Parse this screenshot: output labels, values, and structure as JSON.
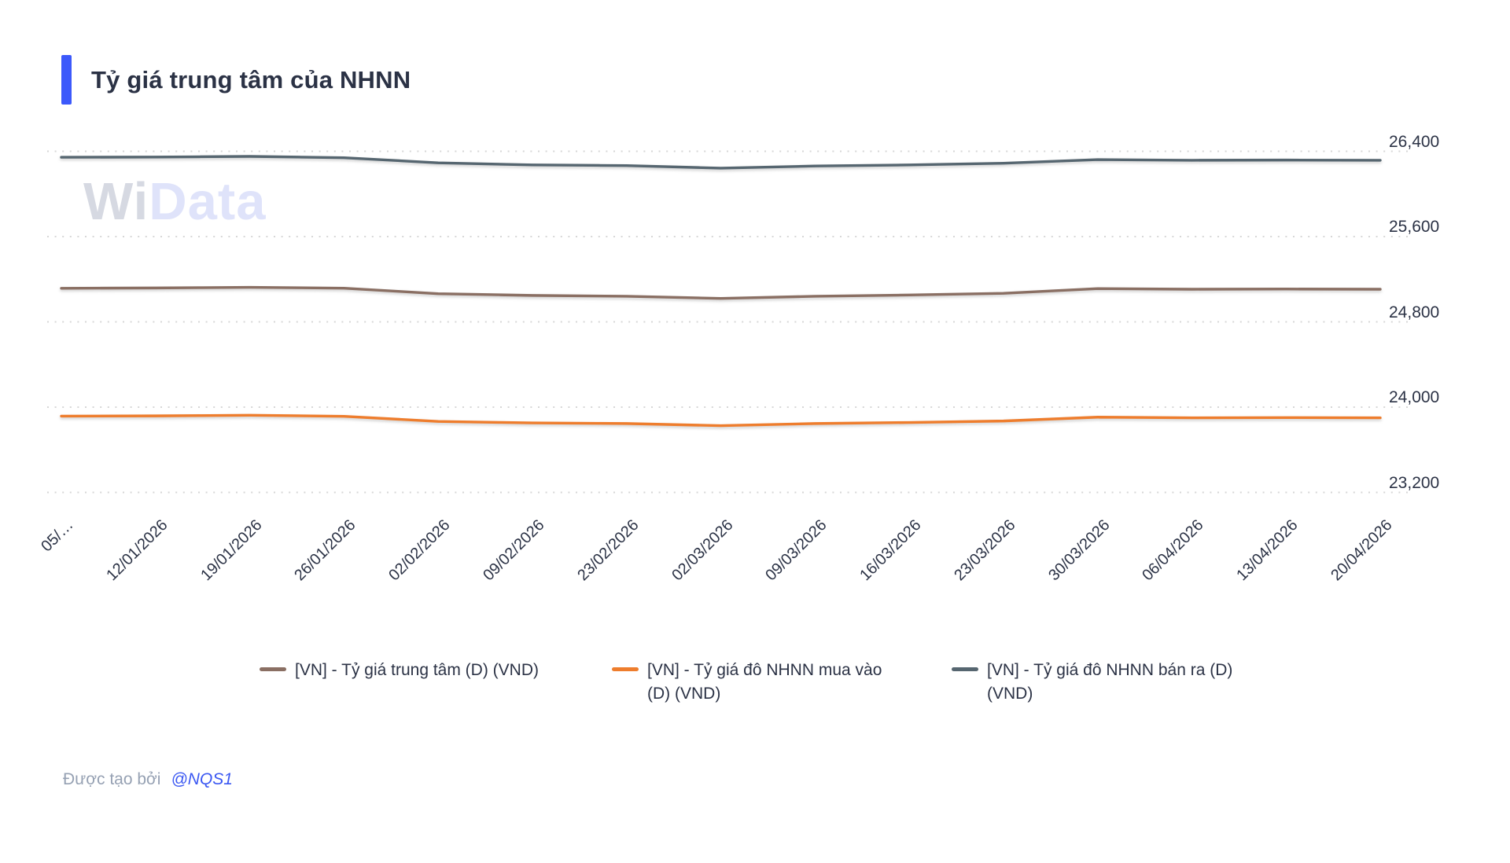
{
  "page": {
    "title": "Tỷ giá trung tâm của NHNN",
    "accent_color": "#3c59fb",
    "watermark": {
      "left": "Wi",
      "right": "Data"
    },
    "footer": {
      "prefix": "Được tạo bởi",
      "author": "@NQS1"
    }
  },
  "chart_data": {
    "type": "line",
    "title": "Tỷ giá trung tâm của NHNN",
    "x": [
      "05/…",
      "12/01/2026",
      "19/01/2026",
      "26/01/2026",
      "02/02/2026",
      "09/02/2026",
      "23/02/2026",
      "02/03/2026",
      "09/03/2026",
      "16/03/2026",
      "23/03/2026",
      "30/03/2026",
      "06/04/2026",
      "13/04/2026",
      "20/04/2026"
    ],
    "ylim": [
      23200,
      26400
    ],
    "y_ticks": [
      26400,
      25600,
      24800,
      24000,
      23200
    ],
    "y_tick_labels": [
      "26,400",
      "25,600",
      "24,800",
      "24,000",
      "23,200"
    ],
    "grid": "horizontal-dotted",
    "legend_position": "bottom",
    "series": [
      {
        "name": "[VN] - Tỷ giá trung tâm (D) (VND)",
        "color": "#8a6f63",
        "values": [
          25115,
          25118,
          25124,
          25116,
          25064,
          25048,
          25040,
          25020,
          25040,
          25052,
          25068,
          25112,
          25106,
          25108,
          25106
        ]
      },
      {
        "name": "[VN] - Tỷ giá đô NHNN mua vào (D) (VND)",
        "color": "#ee7d2d",
        "values": [
          23916,
          23918,
          23924,
          23914,
          23866,
          23852,
          23846,
          23826,
          23846,
          23856,
          23870,
          23906,
          23900,
          23902,
          23900
        ]
      },
      {
        "name": "[VN] - Tỷ giá đô NHNN bán ra (D) (VND)",
        "color": "#566670",
        "values": [
          26344,
          26346,
          26352,
          26340,
          26292,
          26272,
          26266,
          26242,
          26262,
          26272,
          26288,
          26322,
          26316,
          26318,
          26316
        ]
      }
    ]
  }
}
